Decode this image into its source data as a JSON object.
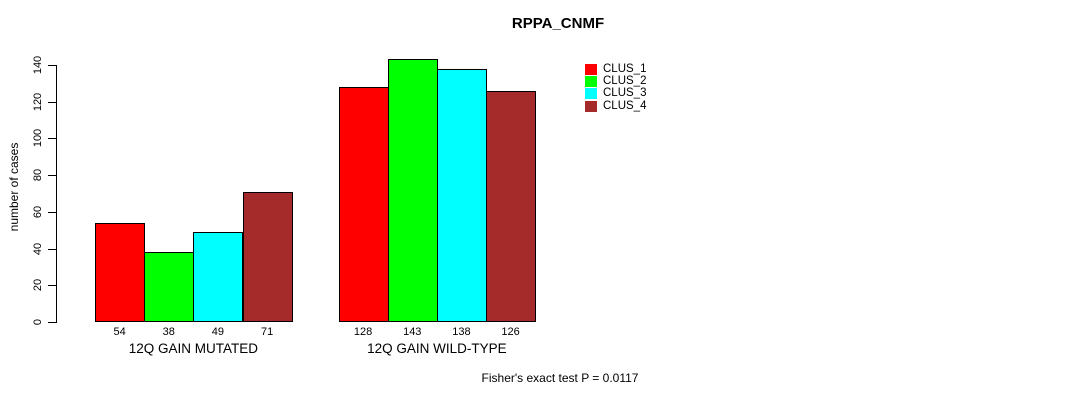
{
  "title": "RPPA_CNMF",
  "colors": {
    "background": "#FFFFFF",
    "axis": "#000000",
    "bar_border": "#000000",
    "clus_1": "#FF0000",
    "clus_2": "#00FF00",
    "clus_3": "#00FFFF",
    "clus_4": "#A52A2A"
  },
  "chart_data": {
    "type": "bar",
    "title": "RPPA_CNMF",
    "xlabel": "",
    "ylabel": "number of cases",
    "ylim": [
      0,
      140
    ],
    "yticks": [
      0,
      20,
      40,
      60,
      80,
      100,
      120,
      140
    ],
    "grid": false,
    "legend_position": "top-right",
    "categories": [
      "12Q GAIN MUTATED",
      "12Q GAIN WILD-TYPE"
    ],
    "series": [
      {
        "name": "CLUS_1",
        "color": "#FF0000",
        "values": [
          54,
          128
        ]
      },
      {
        "name": "CLUS_2",
        "color": "#00FF00",
        "values": [
          38,
          143
        ]
      },
      {
        "name": "CLUS_3",
        "color": "#00FFFF",
        "values": [
          49,
          138
        ]
      },
      {
        "name": "CLUS_4",
        "color": "#A52A2A",
        "values": [
          71,
          126
        ]
      }
    ],
    "bar_value_labels": [
      [
        54,
        38,
        49,
        71
      ],
      [
        128,
        143,
        138,
        126
      ]
    ],
    "annotation": "Fisher's exact test P = 0.0117"
  }
}
